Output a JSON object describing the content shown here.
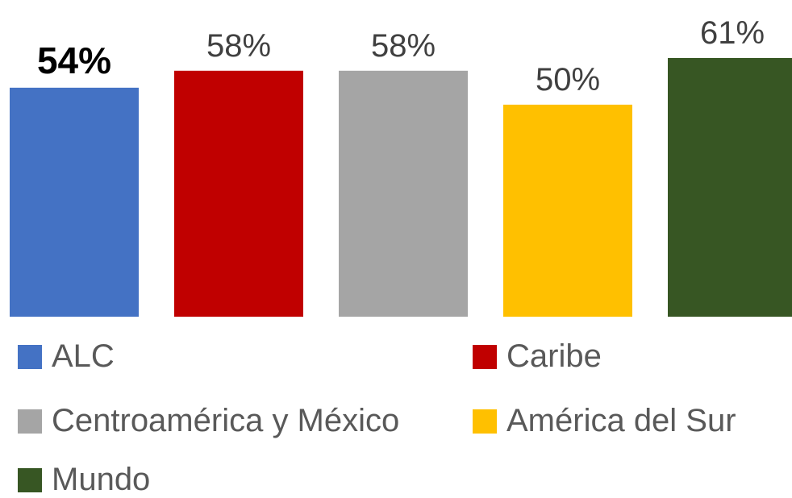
{
  "chart_data": {
    "type": "bar",
    "categories": [
      "ALC",
      "Caribe",
      "Centroamérica y México",
      "América del Sur",
      "Mundo"
    ],
    "values": [
      54,
      58,
      58,
      50,
      61
    ],
    "data_labels": [
      "54%",
      "58%",
      "58%",
      "50%",
      "61%"
    ],
    "colors": [
      "#4472C4",
      "#C00000",
      "#A5A5A5",
      "#FFC000",
      "#375623"
    ],
    "emphasized_index": 0,
    "unit": "%",
    "ylim": [
      0,
      61
    ],
    "grid": false,
    "legend_position": "bottom",
    "title": "",
    "xlabel": "",
    "ylabel": ""
  }
}
